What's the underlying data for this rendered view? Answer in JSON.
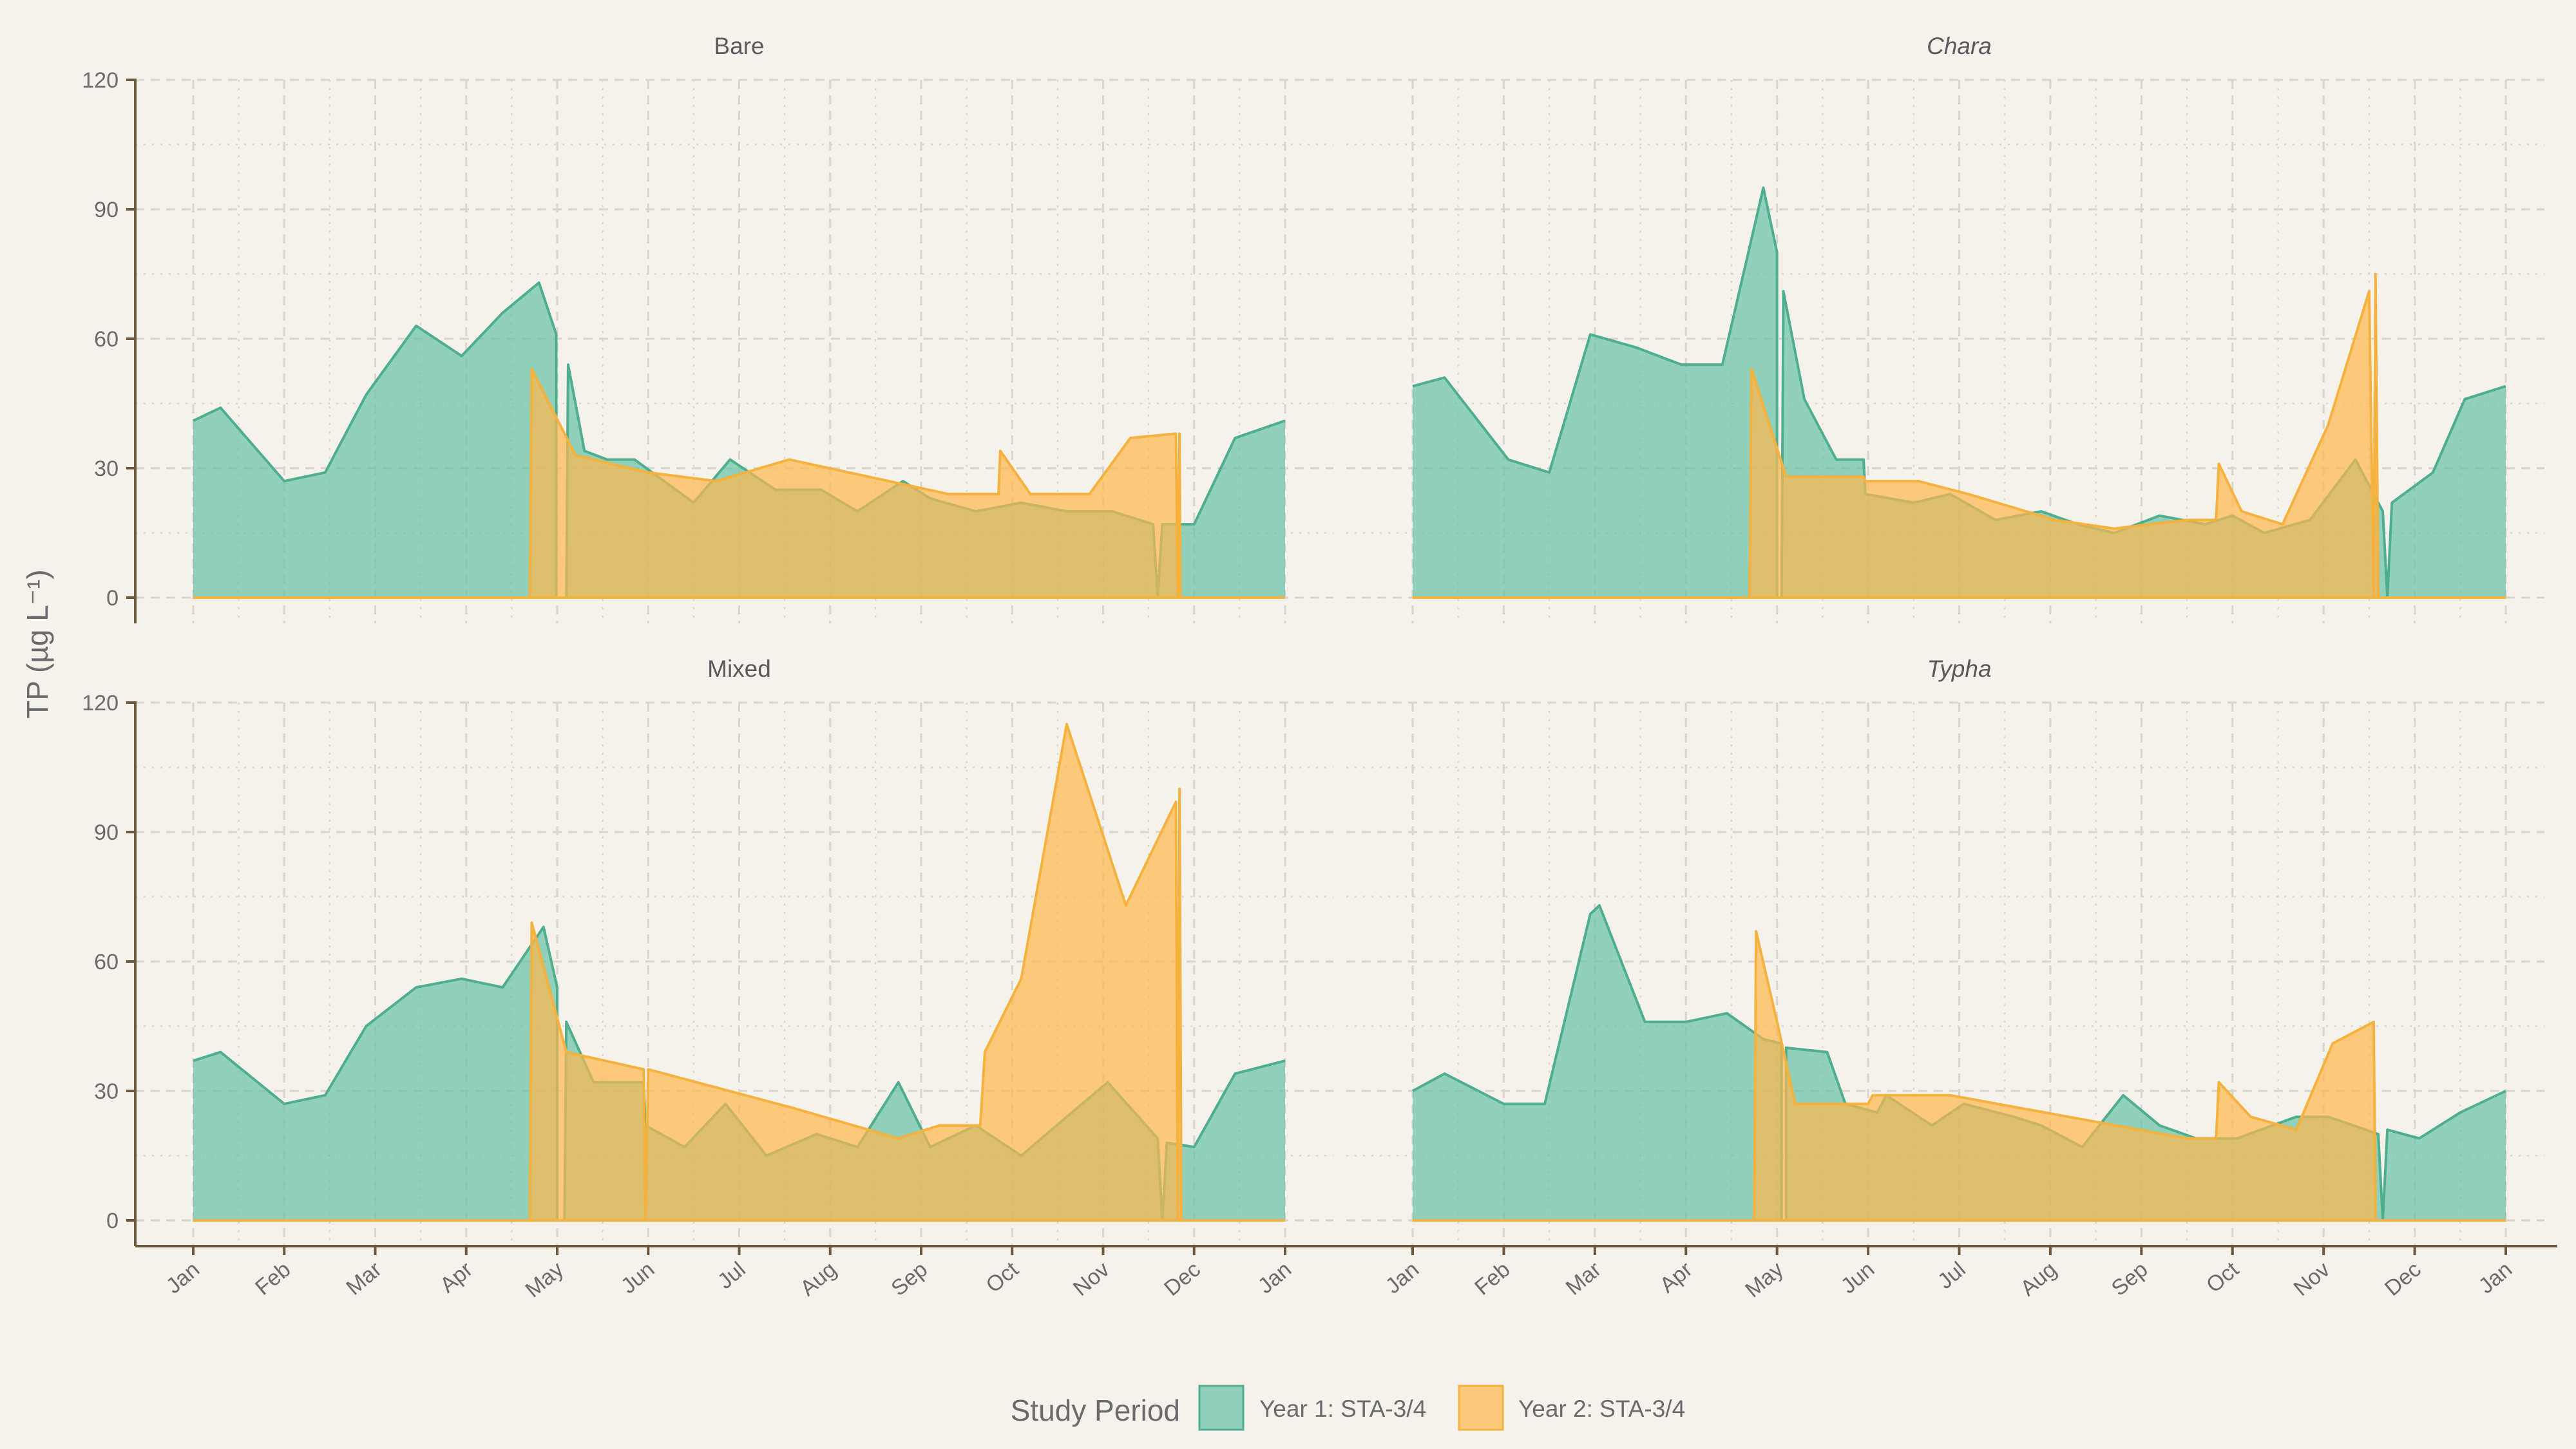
{
  "figure": {
    "y_axis_label": "TP (µg L⁻¹)",
    "legend": {
      "title": "Study Period",
      "entries": [
        {
          "label": "Year 1: STA-3/4",
          "color": "#66C2A5"
        },
        {
          "label": "Year 2: STA-3/4",
          "color": "#FFB84D"
        }
      ]
    },
    "colors": {
      "background": "#F5F1EB",
      "year1_fill": "#66C2A5",
      "year1_line": "#4FAE90",
      "year2_fill": "#FFB84D",
      "year2_line": "#F6B23F",
      "axis": "#6B5A3E",
      "grid": "#D9D4CC"
    }
  },
  "chart_data": {
    "type": "area",
    "facets": [
      "Bare",
      "Chara",
      "Mixed",
      "Typha"
    ],
    "facet_italic": [
      false,
      true,
      false,
      true
    ],
    "x_tick_labels": [
      "Jan",
      "Feb",
      "Mar",
      "Apr",
      "May",
      "Jun",
      "Jul",
      "Aug",
      "Sep",
      "Oct",
      "Nov",
      "Dec",
      "Jan"
    ],
    "x_unit": "months since 1 Jan",
    "xlim": [
      0,
      12
    ],
    "ylim": [
      0,
      120
    ],
    "y_ticks": [
      0,
      30,
      60,
      90,
      120
    ],
    "grid": true,
    "legend_position": "bottom",
    "panels": [
      {
        "title": "Bare",
        "series": [
          {
            "name": "Year 1: STA-3/4",
            "points": [
              [
                0,
                41
              ],
              [
                0.3,
                44
              ],
              [
                1.0,
                27
              ],
              [
                1.45,
                29
              ],
              [
                1.9,
                47
              ],
              [
                2.45,
                63
              ],
              [
                2.95,
                56
              ],
              [
                3.4,
                66
              ],
              [
                3.8,
                73
              ],
              [
                3.99,
                61
              ],
              [
                3.99,
                0
              ],
              [
                4.1,
                0
              ],
              [
                4.12,
                54
              ],
              [
                4.3,
                34
              ],
              [
                4.55,
                32
              ],
              [
                4.85,
                32
              ],
              [
                5.5,
                22
              ],
              [
                5.9,
                32
              ],
              [
                6.4,
                25
              ],
              [
                6.9,
                25
              ],
              [
                7.3,
                20
              ],
              [
                7.8,
                27
              ],
              [
                8.1,
                23
              ],
              [
                8.6,
                20
              ],
              [
                9.1,
                22
              ],
              [
                9.6,
                20
              ],
              [
                10.1,
                20
              ],
              [
                10.55,
                17
              ],
              [
                10.6,
                0
              ],
              [
                10.65,
                17
              ],
              [
                11.0,
                17
              ],
              [
                11.45,
                37
              ],
              [
                12.0,
                41
              ]
            ]
          },
          {
            "name": "Year 2: STA-3/4",
            "points": [
              [
                3.7,
                0
              ],
              [
                3.72,
                53
              ],
              [
                4.2,
                33
              ],
              [
                5.0,
                29
              ],
              [
                5.75,
                27
              ],
              [
                6.55,
                32
              ],
              [
                8.3,
                24
              ],
              [
                8.85,
                24
              ],
              [
                8.87,
                34
              ],
              [
                9.2,
                24
              ],
              [
                9.85,
                24
              ],
              [
                10.3,
                37
              ],
              [
                10.8,
                38
              ],
              [
                10.82,
                0
              ],
              [
                10.84,
                38
              ],
              [
                10.85,
                0
              ]
            ]
          }
        ]
      },
      {
        "title": "Chara",
        "series": [
          {
            "name": "Year 1: STA-3/4",
            "points": [
              [
                0,
                49
              ],
              [
                0.35,
                51
              ],
              [
                1.05,
                32
              ],
              [
                1.5,
                29
              ],
              [
                1.95,
                61
              ],
              [
                2.45,
                58
              ],
              [
                2.95,
                54
              ],
              [
                3.4,
                54
              ],
              [
                3.85,
                95
              ],
              [
                4.0,
                80
              ],
              [
                4.0,
                0
              ],
              [
                4.05,
                0
              ],
              [
                4.07,
                71
              ],
              [
                4.3,
                46
              ],
              [
                4.65,
                32
              ],
              [
                4.95,
                32
              ],
              [
                4.97,
                24
              ],
              [
                5.5,
                22
              ],
              [
                5.9,
                24
              ],
              [
                6.4,
                18
              ],
              [
                6.9,
                20
              ],
              [
                7.3,
                17
              ],
              [
                7.7,
                15
              ],
              [
                8.2,
                19
              ],
              [
                8.7,
                17
              ],
              [
                9.0,
                19
              ],
              [
                9.35,
                15
              ],
              [
                9.85,
                18
              ],
              [
                10.35,
                32
              ],
              [
                10.65,
                20
              ],
              [
                10.7,
                0
              ],
              [
                10.75,
                22
              ],
              [
                11.2,
                29
              ],
              [
                11.55,
                46
              ],
              [
                12.0,
                49
              ]
            ]
          },
          {
            "name": "Year 2: STA-3/4",
            "points": [
              [
                3.7,
                0
              ],
              [
                3.72,
                53
              ],
              [
                4.1,
                28
              ],
              [
                4.95,
                28
              ],
              [
                4.97,
                27
              ],
              [
                5.55,
                27
              ],
              [
                6.1,
                24
              ],
              [
                7.05,
                18
              ],
              [
                7.7,
                16
              ],
              [
                8.5,
                18
              ],
              [
                8.82,
                18
              ],
              [
                8.85,
                31
              ],
              [
                9.1,
                20
              ],
              [
                9.55,
                17
              ],
              [
                10.05,
                40
              ],
              [
                10.5,
                71
              ],
              [
                10.55,
                0
              ],
              [
                10.57,
                75
              ],
              [
                10.6,
                0
              ]
            ]
          }
        ]
      },
      {
        "title": "Mixed",
        "series": [
          {
            "name": "Year 1: STA-3/4",
            "points": [
              [
                0,
                37
              ],
              [
                0.3,
                39
              ],
              [
                1.0,
                27
              ],
              [
                1.45,
                29
              ],
              [
                1.9,
                45
              ],
              [
                2.45,
                54
              ],
              [
                2.95,
                56
              ],
              [
                3.4,
                54
              ],
              [
                3.85,
                68
              ],
              [
                4.0,
                54
              ],
              [
                4.0,
                0
              ],
              [
                4.08,
                0
              ],
              [
                4.1,
                46
              ],
              [
                4.4,
                32
              ],
              [
                4.95,
                32
              ],
              [
                4.97,
                22
              ],
              [
                5.4,
                17
              ],
              [
                5.85,
                27
              ],
              [
                6.3,
                15
              ],
              [
                6.85,
                20
              ],
              [
                7.3,
                17
              ],
              [
                7.75,
                32
              ],
              [
                8.1,
                17
              ],
              [
                8.6,
                22
              ],
              [
                9.1,
                15
              ],
              [
                9.6,
                24
              ],
              [
                10.05,
                32
              ],
              [
                10.6,
                19
              ],
              [
                10.65,
                0
              ],
              [
                10.7,
                18
              ],
              [
                11.0,
                17
              ],
              [
                11.45,
                34
              ],
              [
                12.0,
                37
              ]
            ]
          },
          {
            "name": "Year 2: STA-3/4",
            "points": [
              [
                3.7,
                0
              ],
              [
                3.72,
                69
              ],
              [
                4.1,
                39
              ],
              [
                4.95,
                35
              ],
              [
                4.97,
                0
              ],
              [
                5.0,
                35
              ],
              [
                6.6,
                26
              ],
              [
                7.75,
                19
              ],
              [
                8.2,
                22
              ],
              [
                8.65,
                22
              ],
              [
                8.7,
                39
              ],
              [
                9.1,
                56
              ],
              [
                9.6,
                115
              ],
              [
                10.25,
                73
              ],
              [
                10.8,
                97
              ],
              [
                10.82,
                0
              ],
              [
                10.84,
                100
              ],
              [
                10.86,
                0
              ]
            ]
          }
        ]
      },
      {
        "title": "Typha",
        "series": [
          {
            "name": "Year 1: STA-3/4",
            "points": [
              [
                0,
                30
              ],
              [
                0.35,
                34
              ],
              [
                1.0,
                27
              ],
              [
                1.45,
                27
              ],
              [
                1.95,
                71
              ],
              [
                2.05,
                73
              ],
              [
                2.55,
                46
              ],
              [
                3.0,
                46
              ],
              [
                3.45,
                48
              ],
              [
                3.85,
                42
              ],
              [
                4.05,
                41
              ],
              [
                4.05,
                0
              ],
              [
                4.1,
                0
              ],
              [
                4.1,
                40
              ],
              [
                4.55,
                39
              ],
              [
                4.75,
                27
              ],
              [
                5.1,
                25
              ],
              [
                5.2,
                29
              ],
              [
                5.7,
                22
              ],
              [
                6.05,
                27
              ],
              [
                6.6,
                24
              ],
              [
                6.9,
                22
              ],
              [
                7.35,
                17
              ],
              [
                7.8,
                29
              ],
              [
                8.2,
                22
              ],
              [
                8.6,
                19
              ],
              [
                9.05,
                19
              ],
              [
                9.7,
                24
              ],
              [
                10.05,
                24
              ],
              [
                10.6,
                20
              ],
              [
                10.65,
                0
              ],
              [
                10.7,
                21
              ],
              [
                11.05,
                19
              ],
              [
                11.5,
                25
              ],
              [
                12.0,
                30
              ]
            ]
          },
          {
            "name": "Year 2: STA-3/4",
            "points": [
              [
                3.75,
                0
              ],
              [
                3.77,
                67
              ],
              [
                4.0,
                46
              ],
              [
                4.2,
                27
              ],
              [
                5.0,
                27
              ],
              [
                5.05,
                29
              ],
              [
                5.9,
                29
              ],
              [
                8.5,
                19
              ],
              [
                8.82,
                19
              ],
              [
                8.85,
                32
              ],
              [
                9.2,
                24
              ],
              [
                9.7,
                21
              ],
              [
                10.1,
                41
              ],
              [
                10.55,
                46
              ],
              [
                10.57,
                0
              ],
              [
                10.6,
                0
              ]
            ]
          }
        ]
      }
    ]
  }
}
